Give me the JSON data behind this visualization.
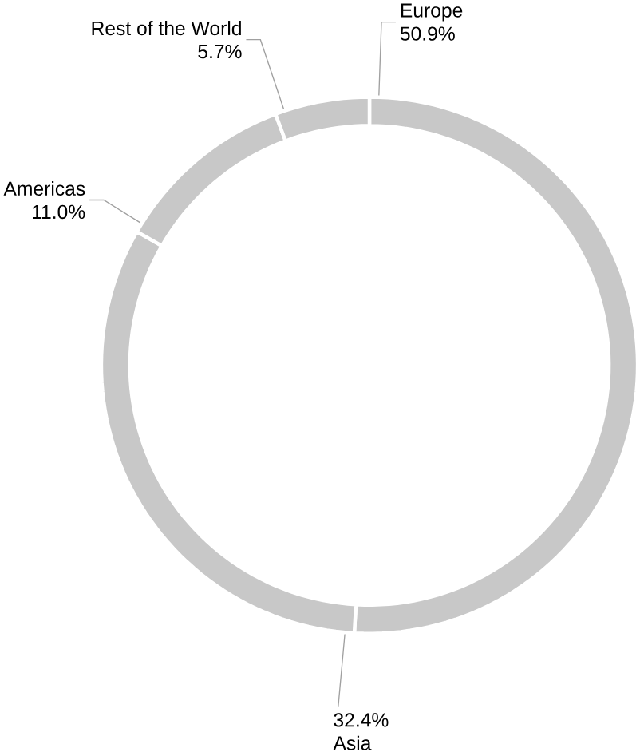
{
  "chart_data": {
    "type": "donut",
    "categories": [
      "Europe",
      "Asia",
      "Americas",
      "Rest of the World"
    ],
    "values": [
      50.9,
      32.4,
      11.0,
      5.7
    ],
    "value_labels": [
      "50.9%",
      "32.4%",
      "11.0%",
      "5.7%"
    ],
    "colors": [
      "#c8c8c8",
      "#c8c8c8",
      "#c8c8c8",
      "#c8c8c8"
    ]
  }
}
